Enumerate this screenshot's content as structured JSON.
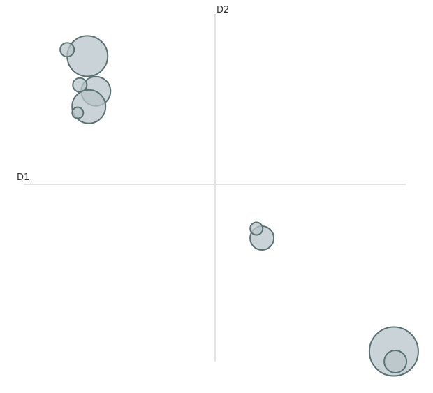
{
  "chart_data": {
    "type": "scatter",
    "title": "",
    "xlabel": "D1",
    "ylabel": "D2",
    "xlim": [
      -1,
      1
    ],
    "ylim": [
      -1,
      1
    ],
    "grid": false,
    "legend": "none",
    "colors": {
      "bubble_fill": "#b8c4ca",
      "bubble_stroke": "#5b7272",
      "axis": "#e3e3e3",
      "label": "#333333"
    },
    "points": [
      {
        "x": -0.667,
        "y": 0.723,
        "size": 29
      },
      {
        "x": -0.773,
        "y": 0.759,
        "size": 10
      },
      {
        "x": -0.623,
        "y": 0.525,
        "size": 21
      },
      {
        "x": -0.707,
        "y": 0.56,
        "size": 10
      },
      {
        "x": -0.66,
        "y": 0.438,
        "size": 24
      },
      {
        "x": -0.718,
        "y": 0.403,
        "size": 8
      },
      {
        "x": 0.245,
        "y": -0.303,
        "size": 17
      },
      {
        "x": 0.216,
        "y": -0.25,
        "size": 9
      },
      {
        "x": 0.934,
        "y": -0.943,
        "size": 35
      },
      {
        "x": 0.942,
        "y": -1.0,
        "size": 16
      }
    ]
  }
}
